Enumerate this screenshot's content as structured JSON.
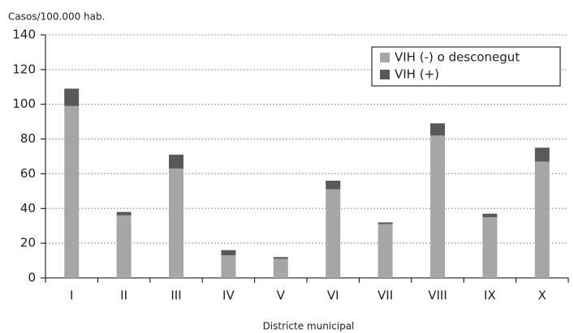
{
  "chart_data": {
    "type": "bar",
    "stacked": true,
    "title": "Casos/100.000 hab.",
    "xlabel": "Districte municipal",
    "categories": [
      "I",
      "II",
      "III",
      "IV",
      "V",
      "VI",
      "VII",
      "VIII",
      "IX",
      "X"
    ],
    "series": [
      {
        "name": "VIH (-) o desconegut",
        "color": "#a6a6a6",
        "values": [
          99,
          36,
          63,
          13,
          11,
          51,
          31,
          82,
          35,
          67
        ]
      },
      {
        "name": "VIH (+)",
        "color": "#595959",
        "values": [
          10,
          2,
          8,
          3,
          1,
          5,
          1,
          7,
          2,
          8
        ]
      }
    ],
    "ylim": [
      0,
      140
    ],
    "yticks": [
      0,
      20,
      40,
      60,
      80,
      100,
      120,
      140
    ],
    "grid": true,
    "legend": "upper right"
  }
}
